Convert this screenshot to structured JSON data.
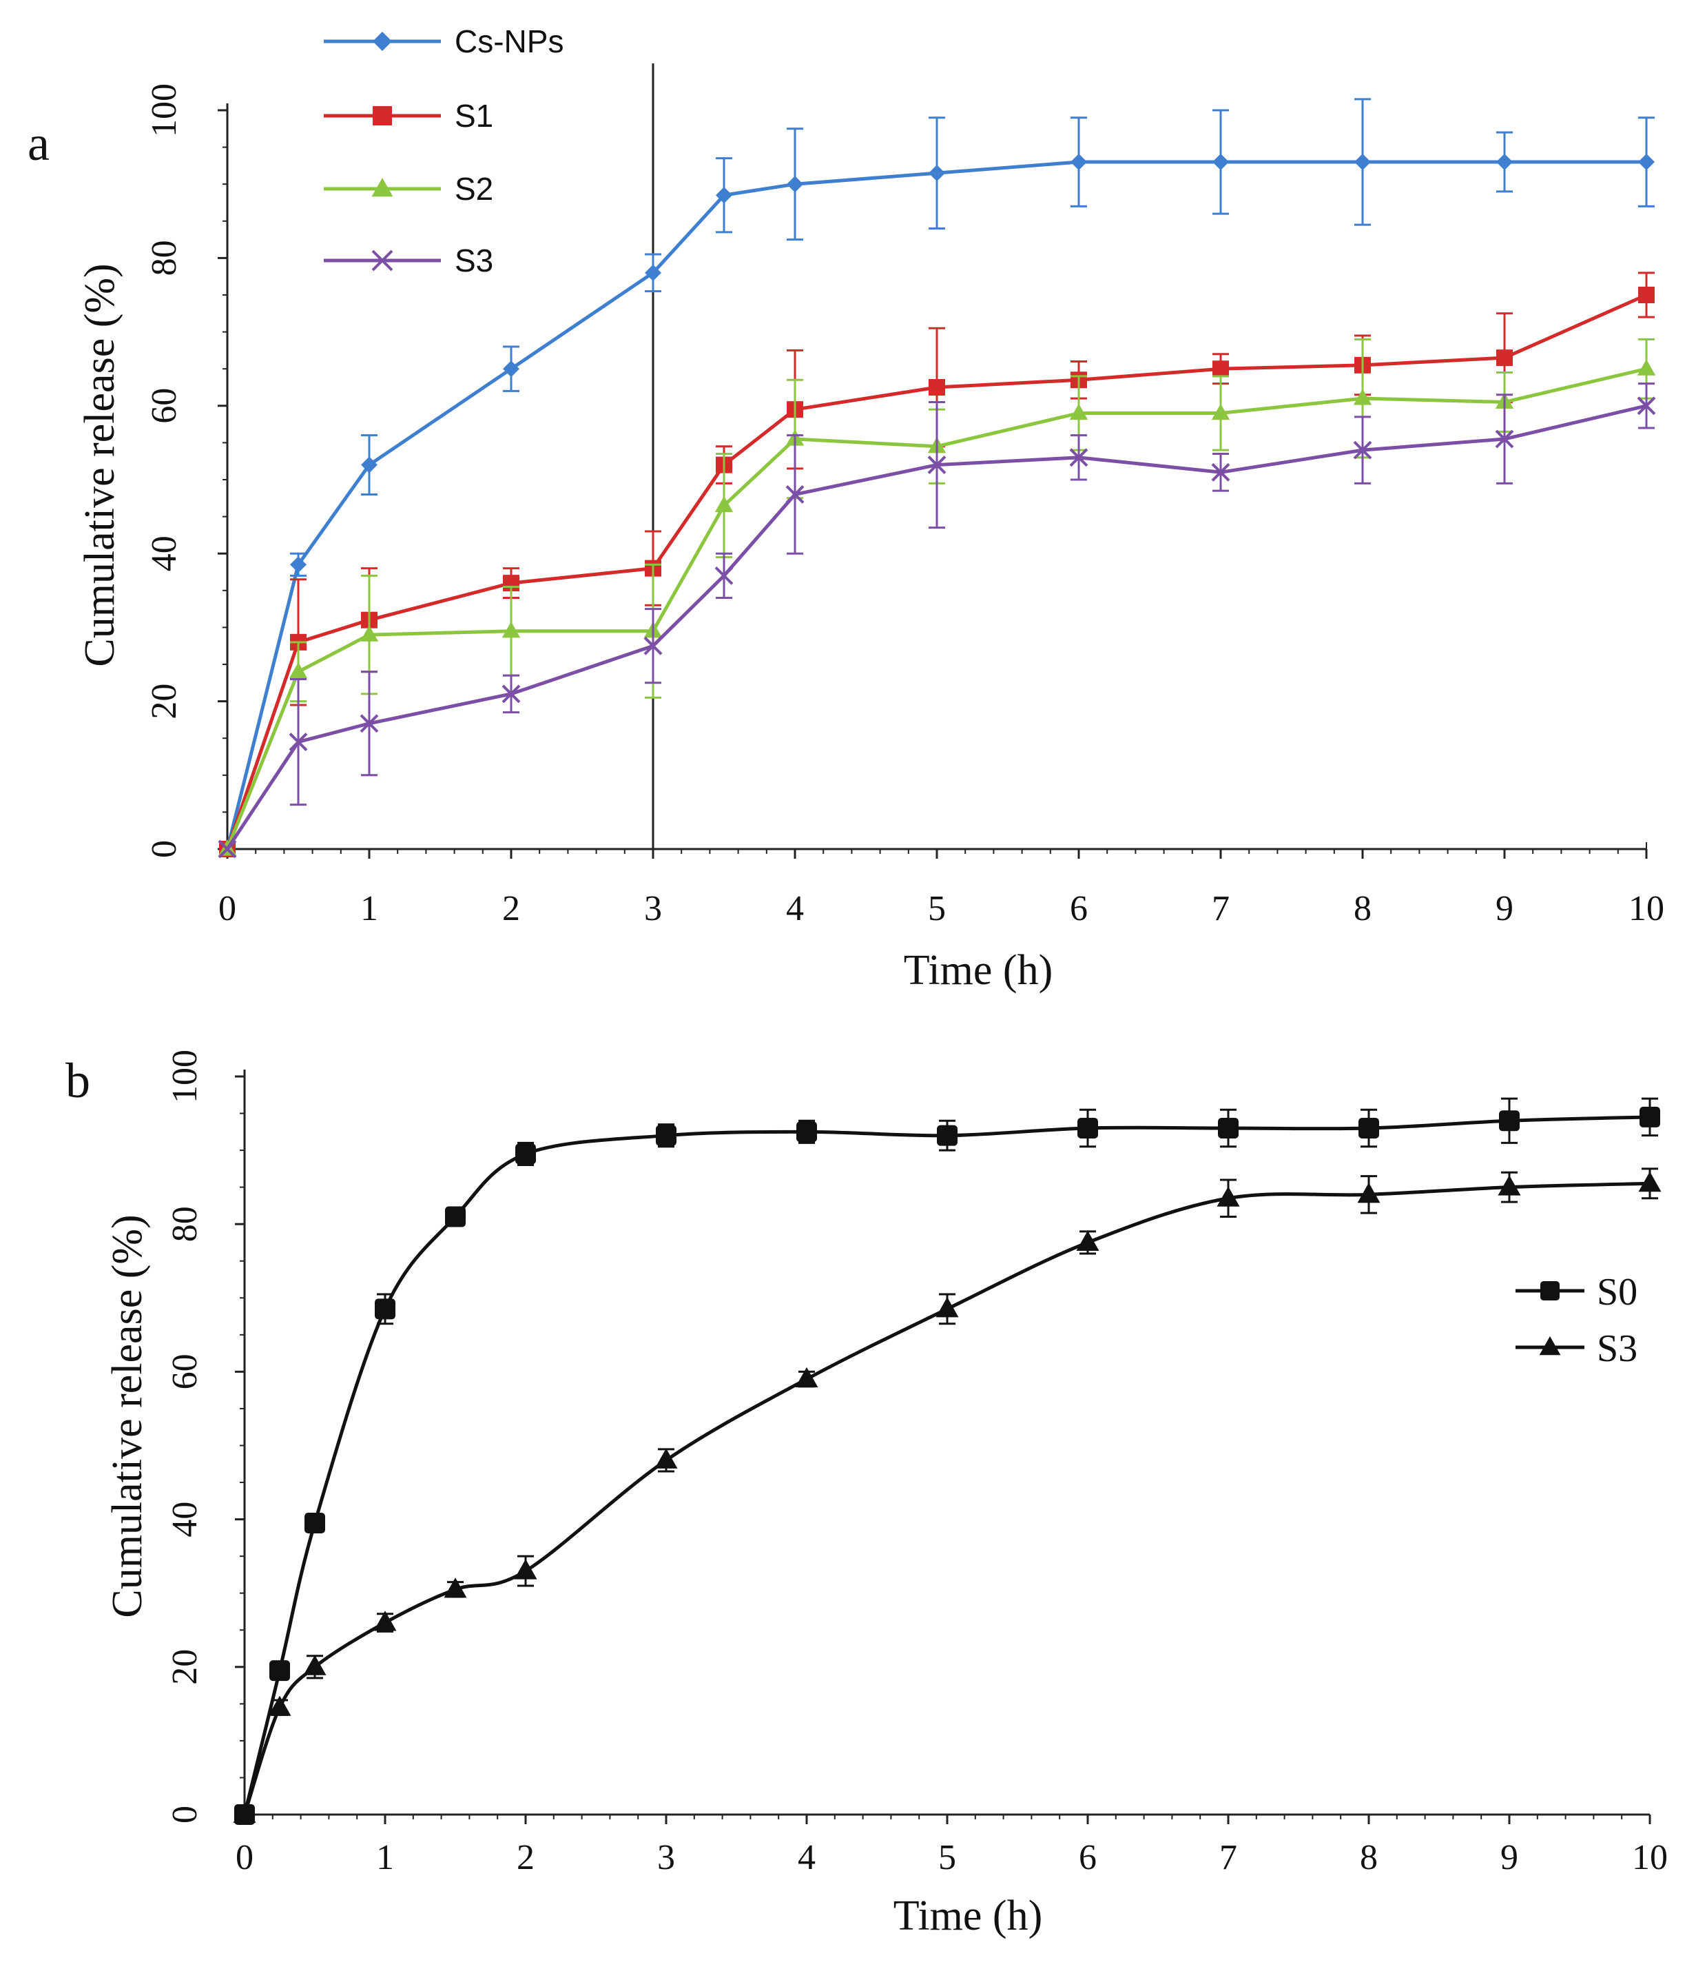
{
  "chart_data": [
    {
      "panel_label": "a",
      "type": "line",
      "xlabel": "Time (h)",
      "ylabel": "Cumulative release (%)",
      "xlim": [
        0,
        10
      ],
      "ylim": [
        0,
        100
      ],
      "xticks": [
        "0",
        "1",
        "2",
        "3",
        "4",
        "5",
        "6",
        "7",
        "8",
        "9",
        "10"
      ],
      "yticks": [
        "0",
        "20",
        "40",
        "60",
        "80",
        "100"
      ],
      "legend_position": "top-left",
      "vertical_line_x": 3,
      "x": [
        0,
        0.5,
        1,
        2,
        3,
        3.5,
        4,
        5,
        6,
        7,
        8,
        9,
        10
      ],
      "series": [
        {
          "name": "Cs-NPs",
          "color": "#3f7fcf",
          "marker": "diamond",
          "values": [
            0,
            38.5,
            52,
            65,
            78,
            88.5,
            90,
            91.5,
            93,
            93,
            93,
            93,
            93
          ],
          "errors": [
            0,
            1.5,
            4,
            3,
            2.5,
            5,
            7.5,
            7.5,
            6,
            7,
            8.5,
            4,
            6
          ]
        },
        {
          "name": "S1",
          "color": "#d42a2a",
          "marker": "square",
          "values": [
            0,
            28,
            31,
            36,
            38,
            52,
            59.5,
            62.5,
            63.5,
            65,
            65.5,
            66.5,
            75
          ],
          "errors": [
            0,
            8.5,
            7,
            2,
            5,
            2.5,
            8,
            8,
            2.5,
            2,
            4,
            6,
            3
          ]
        },
        {
          "name": "S2",
          "color": "#8cc63f",
          "marker": "triangle",
          "values": [
            0,
            24,
            29,
            29.5,
            29.5,
            46.5,
            55.5,
            54.5,
            59,
            59,
            61,
            60.5,
            65
          ],
          "errors": [
            0,
            4,
            8,
            6,
            9,
            7,
            8,
            5,
            5,
            5,
            8,
            4,
            4
          ]
        },
        {
          "name": "S3",
          "color": "#7b4fa6",
          "marker": "x",
          "values": [
            0,
            14.5,
            17,
            21,
            27.5,
            37,
            48,
            52,
            53,
            51,
            54,
            55.5,
            60
          ],
          "errors": [
            0,
            8.5,
            7,
            2.5,
            5,
            3,
            8,
            8.5,
            3,
            2.5,
            4.5,
            6,
            3
          ]
        }
      ]
    },
    {
      "panel_label": "b",
      "type": "line",
      "xlabel": "Time (h)",
      "ylabel": "Cumulative release (%)",
      "xlim": [
        0,
        10
      ],
      "ylim": [
        0,
        100
      ],
      "xticks": [
        "0",
        "1",
        "2",
        "3",
        "4",
        "5",
        "6",
        "7",
        "8",
        "9",
        "10"
      ],
      "yticks": [
        "0",
        "20",
        "40",
        "60",
        "80",
        "100"
      ],
      "legend_position": "center-right",
      "series": [
        {
          "name": "S0",
          "color": "#111111",
          "marker": "square",
          "x": [
            0,
            0.25,
            0.5,
            1,
            1.5,
            2,
            3,
            4,
            5,
            6,
            7,
            8,
            9,
            10
          ],
          "values": [
            0,
            19.5,
            39.5,
            68.5,
            81,
            89.5,
            92,
            92.5,
            92,
            93,
            93,
            93,
            94,
            94.5
          ],
          "errors": [
            0,
            1.2,
            1.2,
            2,
            1,
            1.5,
            1.5,
            1.5,
            2,
            2.5,
            2.5,
            2.5,
            3,
            2.5
          ]
        },
        {
          "name": "S3",
          "color": "#111111",
          "marker": "triangle",
          "x": [
            0,
            0.25,
            0.5,
            1,
            1.5,
            2,
            3,
            4,
            5,
            6,
            7,
            8,
            9,
            10
          ],
          "values": [
            0,
            14.5,
            20,
            26,
            30.5,
            33,
            48,
            59,
            68.5,
            77.5,
            83.5,
            84,
            85,
            85.5
          ],
          "errors": [
            0,
            1,
            1.5,
            1.2,
            1,
            2,
            1.5,
            1,
            2,
            1.5,
            2.5,
            2.5,
            2,
            2
          ]
        }
      ]
    }
  ]
}
